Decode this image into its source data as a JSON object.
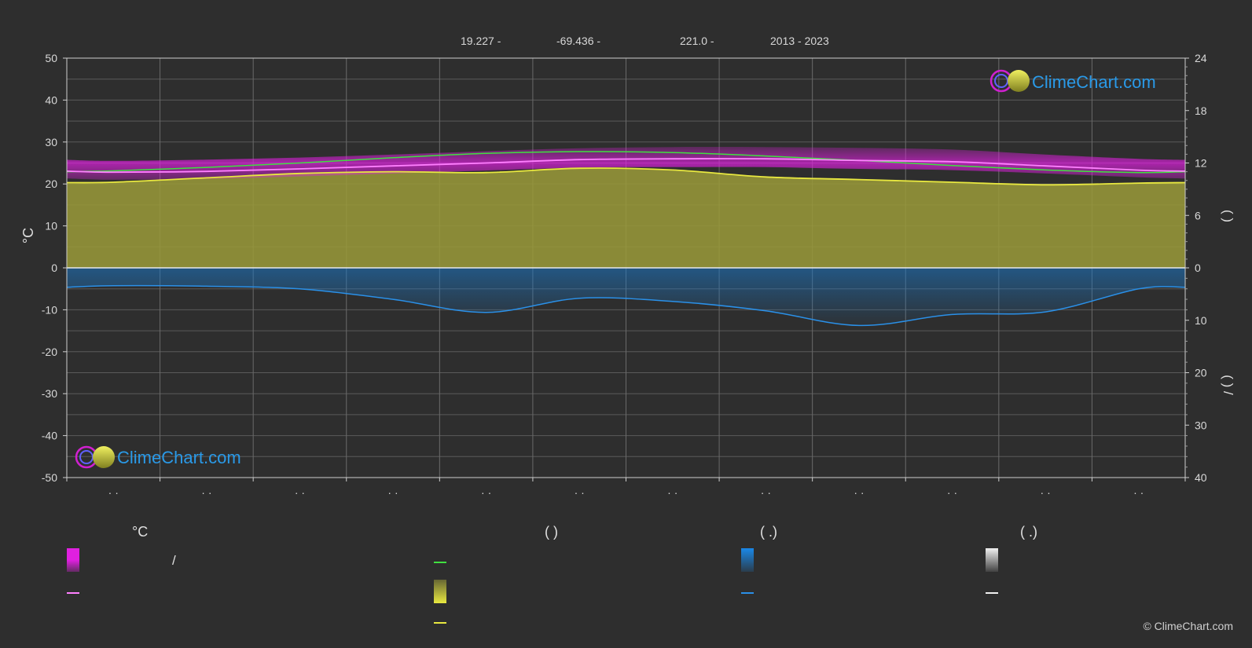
{
  "header": {
    "lat": "19.227 -",
    "lon": "-69.436 -",
    "elev": "221.0 -",
    "years": "2013 - 2023"
  },
  "brand": {
    "name": "ClimeChart.com",
    "copyright": "© ClimeChart.com"
  },
  "legend": {
    "col1_head": "°C",
    "col1_slash": "/",
    "col2_head": "(          )",
    "col3_head": "(   .)",
    "col4_head": "(   .)"
  },
  "colors": {
    "background": "#2e2e2e",
    "temp_band": "#e020e0",
    "mean_temp": "#ff80ff",
    "daylight": "#40e040",
    "sunshine": "#e8e840",
    "sunshine_fill": "#9a9a38",
    "precip": "#1a78c8",
    "precip_line": "#2a90e8",
    "grid": "#5a5a5a"
  },
  "chart_data": {
    "type": "area",
    "ylabel_left": "°C",
    "right_axis_upper_label": "(   )",
    "right_axis_lower_label": "(   ) /",
    "left_axis": {
      "ylim": [
        -50,
        50
      ],
      "ticks": [
        50,
        40,
        30,
        20,
        10,
        0,
        -10,
        -20,
        -30,
        -40,
        -50
      ]
    },
    "right_axis_upper": {
      "ylim": [
        0,
        24
      ],
      "ticks": [
        24,
        18,
        12,
        6,
        0
      ],
      "unit": "hours"
    },
    "right_axis_lower": {
      "ylim": [
        0,
        40
      ],
      "ticks": [
        0,
        10,
        20,
        30,
        40
      ],
      "unit": "mm"
    },
    "x_tick_labels": [
      "· ·",
      "· ·",
      "· ·",
      "· ·",
      "· ·",
      "· ·",
      "· ·",
      "· ·",
      "· ·",
      "· ·",
      "· ·",
      "· ·"
    ],
    "months": [
      1,
      2,
      3,
      4,
      5,
      6,
      7,
      8,
      9,
      10,
      11,
      12
    ],
    "grid": true,
    "series": [
      {
        "key": "daylight_hours",
        "axis": "right_upper",
        "values": [
          11.1,
          11.5,
          12.0,
          12.6,
          13.1,
          13.3,
          13.2,
          12.8,
          12.3,
          11.7,
          11.2,
          10.9
        ]
      },
      {
        "key": "sunshine_hours",
        "axis": "right_upper",
        "values": [
          9.8,
          10.3,
          10.8,
          11.0,
          10.9,
          11.4,
          11.2,
          10.4,
          10.1,
          9.8,
          9.5,
          9.7
        ]
      },
      {
        "key": "mean_temp_c",
        "axis": "left",
        "values": [
          22.8,
          23.0,
          23.6,
          24.3,
          25.0,
          25.8,
          26.0,
          26.0,
          25.6,
          25.3,
          24.3,
          23.3
        ]
      },
      {
        "key": "temp_max_c",
        "axis": "left",
        "values": [
          25.5,
          25.8,
          26.3,
          27.0,
          27.8,
          28.5,
          28.8,
          28.8,
          28.6,
          28.2,
          27.0,
          26.0
        ]
      },
      {
        "key": "temp_min_c",
        "axis": "left",
        "values": [
          21.0,
          21.2,
          21.8,
          22.5,
          23.2,
          23.9,
          24.0,
          24.0,
          23.6,
          23.3,
          22.5,
          21.6
        ]
      },
      {
        "key": "precip_mm",
        "axis": "right_lower",
        "values": [
          3.4,
          3.5,
          4.0,
          6.0,
          8.5,
          5.8,
          6.4,
          8.2,
          11.0,
          8.9,
          8.4,
          4.0
        ]
      }
    ]
  }
}
